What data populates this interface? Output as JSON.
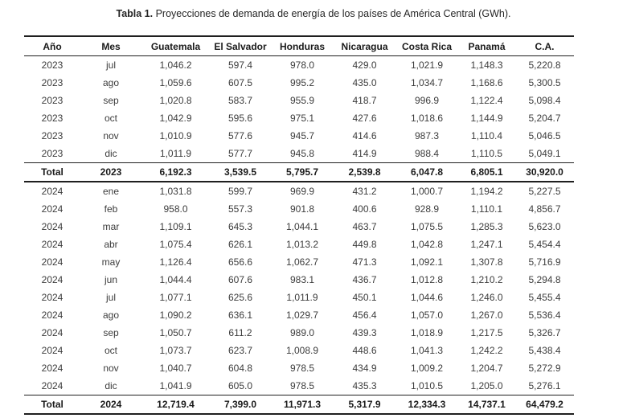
{
  "page": {
    "title_label": "Tabla 1.",
    "title_text": "Proyecciones de demanda de energía de los países de América Central (GWh)."
  },
  "chart_data": {
    "type": "table",
    "title": "Tabla 1. Proyecciones de demanda de energía de los países de América Central (GWh).",
    "columns": [
      "Año",
      "Mes",
      "Guatemala",
      "El Salvador",
      "Honduras",
      "Nicaragua",
      "Costa Rica",
      "Panamá",
      "C.A."
    ],
    "sections": [
      {
        "year": "2023",
        "rows": [
          [
            "2023",
            "jul",
            "1,046.2",
            "597.4",
            "978.0",
            "429.0",
            "1,021.9",
            "1,148.3",
            "5,220.8"
          ],
          [
            "2023",
            "ago",
            "1,059.6",
            "607.5",
            "995.2",
            "435.0",
            "1,034.7",
            "1,168.6",
            "5,300.5"
          ],
          [
            "2023",
            "sep",
            "1,020.8",
            "583.7",
            "955.9",
            "418.7",
            "996.9",
            "1,122.4",
            "5,098.4"
          ],
          [
            "2023",
            "oct",
            "1,042.9",
            "595.6",
            "975.1",
            "427.6",
            "1,018.6",
            "1,144.9",
            "5,204.7"
          ],
          [
            "2023",
            "nov",
            "1,010.9",
            "577.6",
            "945.7",
            "414.6",
            "987.3",
            "1,110.4",
            "5,046.5"
          ],
          [
            "2023",
            "dic",
            "1,011.9",
            "577.7",
            "945.8",
            "414.9",
            "988.4",
            "1,110.5",
            "5,049.1"
          ]
        ],
        "total": [
          "Total",
          "2023",
          "6,192.3",
          "3,539.5",
          "5,795.7",
          "2,539.8",
          "6,047.8",
          "6,805.1",
          "30,920.0"
        ]
      },
      {
        "year": "2024",
        "rows": [
          [
            "2024",
            "ene",
            "1,031.8",
            "599.7",
            "969.9",
            "431.2",
            "1,000.7",
            "1,194.2",
            "5,227.5"
          ],
          [
            "2024",
            "feb",
            "958.0",
            "557.3",
            "901.8",
            "400.6",
            "928.9",
            "1,110.1",
            "4,856.7"
          ],
          [
            "2024",
            "mar",
            "1,109.1",
            "645.3",
            "1,044.1",
            "463.7",
            "1,075.5",
            "1,285.3",
            "5,623.0"
          ],
          [
            "2024",
            "abr",
            "1,075.4",
            "626.1",
            "1,013.2",
            "449.8",
            "1,042.8",
            "1,247.1",
            "5,454.4"
          ],
          [
            "2024",
            "may",
            "1,126.4",
            "656.6",
            "1,062.7",
            "471.3",
            "1,092.1",
            "1,307.8",
            "5,716.9"
          ],
          [
            "2024",
            "jun",
            "1,044.4",
            "607.6",
            "983.1",
            "436.7",
            "1,012.8",
            "1,210.2",
            "5,294.8"
          ],
          [
            "2024",
            "jul",
            "1,077.1",
            "625.6",
            "1,011.9",
            "450.1",
            "1,044.6",
            "1,246.0",
            "5,455.4"
          ],
          [
            "2024",
            "ago",
            "1,090.2",
            "636.1",
            "1,029.7",
            "456.4",
            "1,057.0",
            "1,267.0",
            "5,536.4"
          ],
          [
            "2024",
            "sep",
            "1,050.7",
            "611.2",
            "989.0",
            "439.3",
            "1,018.9",
            "1,217.5",
            "5,326.7"
          ],
          [
            "2024",
            "oct",
            "1,073.7",
            "623.7",
            "1,008.9",
            "448.6",
            "1,041.3",
            "1,242.2",
            "5,438.4"
          ],
          [
            "2024",
            "nov",
            "1,040.7",
            "604.8",
            "978.5",
            "434.9",
            "1,009.2",
            "1,204.7",
            "5,272.9"
          ],
          [
            "2024",
            "dic",
            "1,041.9",
            "605.0",
            "978.5",
            "435.3",
            "1,010.5",
            "1,205.0",
            "5,276.1"
          ]
        ],
        "total": [
          "Total",
          "2024",
          "12,719.4",
          "7,399.0",
          "11,971.3",
          "5,317.9",
          "12,334.3",
          "14,737.1",
          "64,479.2"
        ]
      }
    ],
    "colors": {
      "text": "#3c3c3c",
      "strong_text": "#1a1a1a",
      "rule": "#1f1f1f",
      "background": "#ffffff"
    }
  }
}
